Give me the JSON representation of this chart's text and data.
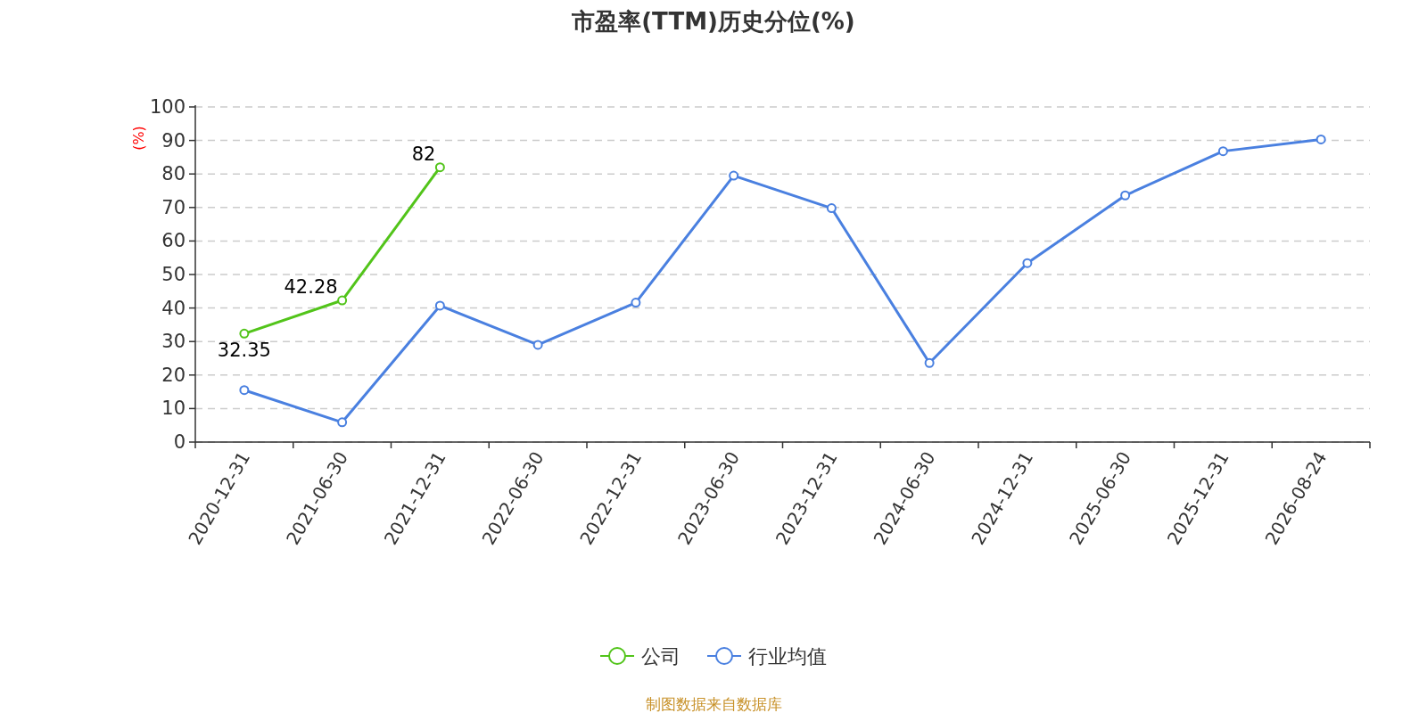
{
  "chart_data": {
    "type": "line",
    "title": "市盈率(TTM)历史分位(%)",
    "ylabel": "(%)",
    "categories": [
      "2020-12-31",
      "2021-06-30",
      "2021-12-31",
      "2022-06-30",
      "2022-12-31",
      "2023-06-30",
      "2023-12-31",
      "2024-06-30",
      "2024-12-31",
      "2025-06-30",
      "2025-12-31",
      "2026-08-24"
    ],
    "series": [
      {
        "name": "公司",
        "color": "#52c41a",
        "values": [
          32.35,
          42.28,
          82,
          null,
          null,
          null,
          null,
          null,
          null,
          null,
          null,
          null
        ],
        "value_labels": [
          "32.35",
          "42.28",
          "82",
          null,
          null,
          null,
          null,
          null,
          null,
          null,
          null,
          null
        ]
      },
      {
        "name": "行业均值",
        "color": "#4a80e0",
        "values": [
          15.5,
          5.9,
          40.7,
          29.0,
          41.6,
          79.5,
          69.8,
          23.6,
          53.4,
          73.6,
          86.8,
          90.3
        ]
      }
    ],
    "ylim": [
      0,
      100
    ],
    "yticks": [
      0,
      10,
      20,
      30,
      40,
      50,
      60,
      70,
      80,
      90,
      100
    ],
    "grid": "y",
    "legend": "bottom",
    "marker": "circle",
    "line_style": "solid",
    "annotations": [
      "制图数据来自数据库"
    ]
  }
}
